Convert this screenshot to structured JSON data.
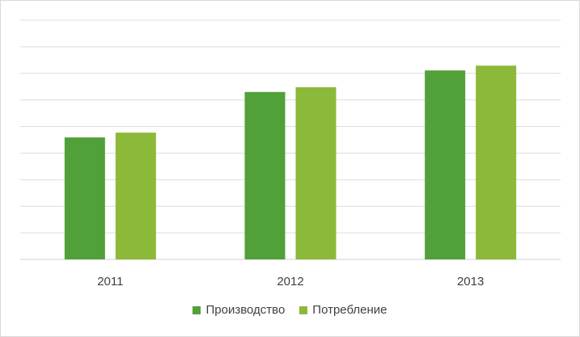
{
  "chart_data": {
    "type": "bar",
    "categories": [
      "2011",
      "2012",
      "2013"
    ],
    "series": [
      {
        "name": "Производство",
        "values": [
          5.1,
          7.0,
          7.9
        ],
        "color": "#52a03a"
      },
      {
        "name": "Потребление",
        "values": [
          5.3,
          7.2,
          8.1
        ],
        "color": "#8cb939"
      }
    ],
    "ylim": [
      0,
      10
    ],
    "grid": true,
    "y_tick_labels_visible": false,
    "legend_position": "bottom"
  }
}
